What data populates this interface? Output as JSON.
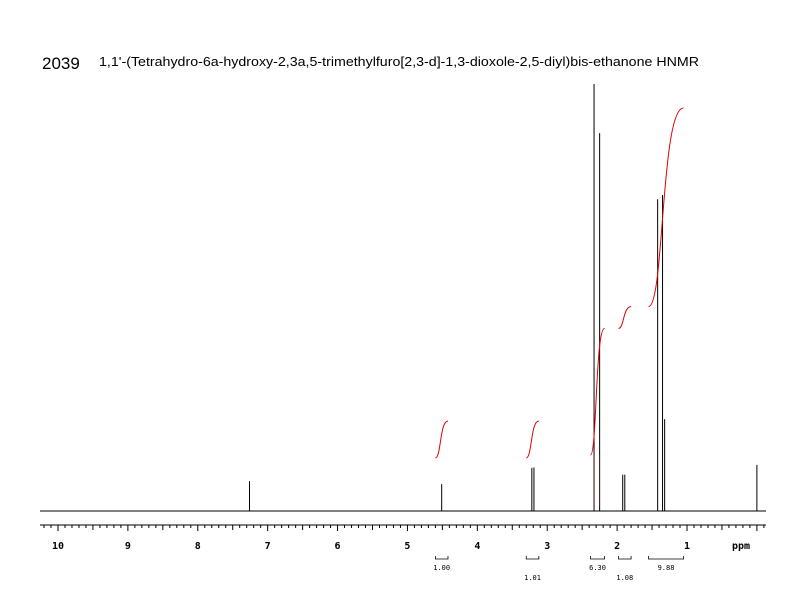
{
  "header": {
    "id": "2039",
    "title": "1,1'-(Tetrahydro-6a-hydroxy-2,3a,5-trimethylfuro[2,3-d]-1,3-dioxole-2,5-diyl)bis-ethanone HNMR"
  },
  "colors": {
    "spectrum": "#000000",
    "integral": "#e00000",
    "axis": "#000000"
  },
  "chart_data": {
    "type": "line",
    "title": "1,1'-(Tetrahydro-6a-hydroxy-2,3a,5-trimethylfuro[2,3-d]-1,3-dioxole-2,5-diyl)bis-ethanone HNMR",
    "xlabel": "ppm",
    "ylabel": "",
    "xlim": [
      10.25,
      -0.05
    ],
    "reversed_x": true,
    "grid": false,
    "ticks": [
      10,
      9,
      8,
      7,
      6,
      5,
      4,
      3,
      2,
      1
    ],
    "peaks": [
      {
        "ppm": 7.26,
        "height": 0.07
      },
      {
        "ppm": 4.51,
        "height": 0.063
      },
      {
        "ppm": 3.22,
        "height": 0.101
      },
      {
        "ppm": 3.19,
        "height": 0.102
      },
      {
        "ppm": 2.33,
        "height": 1.0
      },
      {
        "ppm": 2.25,
        "height": 0.885
      },
      {
        "ppm": 1.92,
        "height": 0.085
      },
      {
        "ppm": 1.89,
        "height": 0.085
      },
      {
        "ppm": 1.42,
        "height": 0.73
      },
      {
        "ppm": 1.35,
        "height": 0.74
      },
      {
        "ppm": 1.32,
        "height": 0.215
      },
      {
        "ppm": 0.0,
        "height": 0.108
      }
    ],
    "integrals": [
      {
        "label": "1.00",
        "from": 4.6,
        "to": 4.42,
        "value": 1.0
      },
      {
        "label": "1.01",
        "from": 3.3,
        "to": 3.12,
        "value": 1.01
      },
      {
        "label": "6.30",
        "from": 2.38,
        "to": 2.18,
        "value": 6.3
      },
      {
        "label": "1.08",
        "from": 1.98,
        "to": 1.8,
        "value": 1.08
      },
      {
        "label": "9.88",
        "from": 1.55,
        "to": 1.05,
        "value": 9.88
      }
    ]
  }
}
